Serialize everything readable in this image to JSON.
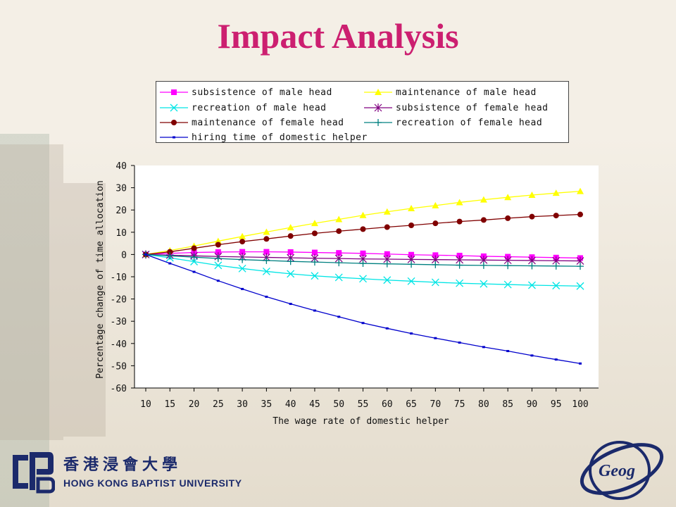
{
  "slide": {
    "title": "Impact Analysis"
  },
  "logos": {
    "hkbu_chinese": "香港浸會大學",
    "hkbu_english": "HONG KONG BAPTIST UNIVERSITY",
    "geog_text": "Geog"
  },
  "colors": {
    "title": "#cc1f70",
    "logo_navy": "#1b2a6b"
  },
  "chart_data": {
    "type": "line",
    "xlabel": "The wage rate of domestic helper",
    "ylabel": "Percentage change of time allocation",
    "x": [
      10,
      15,
      20,
      25,
      30,
      35,
      40,
      45,
      50,
      55,
      60,
      65,
      70,
      75,
      80,
      85,
      90,
      95,
      100
    ],
    "xticks": [
      "10",
      "15",
      "20",
      "25",
      "30",
      "35",
      "40",
      "45",
      "50",
      "55",
      "60",
      "65",
      "70",
      "75",
      "80",
      "85",
      "90",
      "95",
      "100"
    ],
    "ylim": [
      -60,
      40
    ],
    "yticks": [
      "40",
      "30",
      "20",
      "10",
      "0",
      "-10",
      "-20",
      "-30",
      "-40",
      "-50",
      "-60"
    ],
    "grid": false,
    "legend_position": "top",
    "series": [
      {
        "name": "subsistence of male head",
        "color": "#ff00ff",
        "marker": "square",
        "values": [
          0,
          0.5,
          0.9,
          1.1,
          1.2,
          1.2,
          1.1,
          0.9,
          0.7,
          0.5,
          0.2,
          -0.1,
          -0.3,
          -0.5,
          -0.8,
          -1.0,
          -1.2,
          -1.4,
          -1.6
        ]
      },
      {
        "name": "maintenance of male head",
        "color": "#ffff00",
        "marker": "triangle",
        "values": [
          0,
          1.8,
          3.8,
          6.0,
          8.1,
          10.1,
          12.1,
          14.0,
          15.8,
          17.6,
          19.2,
          20.7,
          22.0,
          23.4,
          24.6,
          25.7,
          26.7,
          27.6,
          28.4
        ]
      },
      {
        "name": "recreation of male head",
        "color": "#00e5e5",
        "marker": "x",
        "values": [
          0,
          -1.5,
          -3.2,
          -4.9,
          -6.3,
          -7.6,
          -8.7,
          -9.6,
          -10.3,
          -10.9,
          -11.5,
          -12.0,
          -12.5,
          -12.9,
          -13.2,
          -13.5,
          -13.8,
          -14.0,
          -14.2
        ]
      },
      {
        "name": "subsistence of female head",
        "color": "#800080",
        "marker": "star",
        "values": [
          0,
          -0.3,
          -0.6,
          -0.9,
          -1.1,
          -1.3,
          -1.5,
          -1.7,
          -1.8,
          -2.0,
          -2.1,
          -2.2,
          -2.3,
          -2.4,
          -2.5,
          -2.6,
          -2.7,
          -2.8,
          -2.9
        ]
      },
      {
        "name": "maintenance of female head",
        "color": "#800000",
        "marker": "circle",
        "values": [
          0,
          1.2,
          2.8,
          4.4,
          5.8,
          7.0,
          8.3,
          9.5,
          10.5,
          11.4,
          12.3,
          13.1,
          14.0,
          14.8,
          15.5,
          16.3,
          17.0,
          17.5,
          18.0
        ]
      },
      {
        "name": "recreation of female head",
        "color": "#008080",
        "marker": "plus",
        "values": [
          0,
          -0.6,
          -1.2,
          -1.8,
          -2.3,
          -2.7,
          -3.1,
          -3.4,
          -3.7,
          -4.0,
          -4.2,
          -4.4,
          -4.6,
          -4.8,
          -4.9,
          -5.0,
          -5.1,
          -5.2,
          -5.3
        ]
      },
      {
        "name": "hiring time of domestic helper",
        "color": "#0000cc",
        "marker": "dot",
        "values": [
          0,
          -4.0,
          -7.8,
          -11.8,
          -15.5,
          -19.0,
          -22.2,
          -25.2,
          -28.0,
          -30.8,
          -33.2,
          -35.5,
          -37.6,
          -39.6,
          -41.6,
          -43.4,
          -45.4,
          -47.2,
          -49.0
        ]
      }
    ]
  }
}
